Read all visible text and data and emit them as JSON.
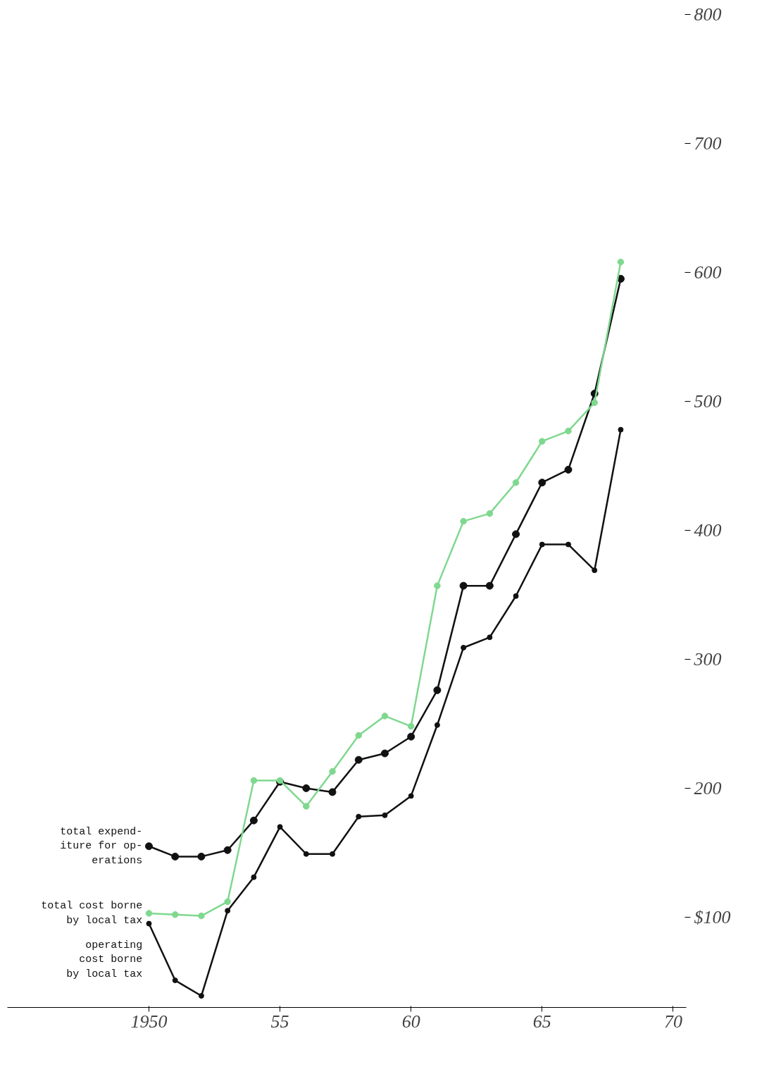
{
  "chart_data": {
    "type": "line",
    "x": [
      1950,
      1951,
      1952,
      1953,
      1954,
      1955,
      1956,
      1957,
      1958,
      1959,
      1960,
      1961,
      1962,
      1963,
      1964,
      1965,
      1966,
      1967,
      1968
    ],
    "series": [
      {
        "name": "total expend-\niture for op-\nerations",
        "color": "#111111",
        "values": [
          155,
          147,
          147,
          152,
          175,
          205,
          200,
          197,
          222,
          227,
          240,
          276,
          357,
          357,
          397,
          437,
          447,
          506,
          595
        ]
      },
      {
        "name": "total cost borne\nby local tax",
        "color": "#7fd88f",
        "values": [
          103,
          102,
          101,
          112,
          206,
          206,
          186,
          213,
          241,
          256,
          248,
          357,
          407,
          413,
          437,
          469,
          477,
          499,
          608
        ]
      },
      {
        "name": "operating\ncost borne\nby local tax",
        "color": "#111111",
        "values": [
          95,
          51,
          39,
          105,
          131,
          170,
          149,
          149,
          178,
          179,
          194,
          249,
          309,
          317,
          349,
          389,
          389,
          369,
          478
        ]
      }
    ],
    "xlim": [
      1944.6,
      1970.5
    ],
    "ylim": [
      30,
      800
    ],
    "xticks": [
      {
        "value": 1950,
        "label": "1950"
      },
      {
        "value": 1955,
        "label": "55"
      },
      {
        "value": 1960,
        "label": "60"
      },
      {
        "value": 1965,
        "label": "65"
      },
      {
        "value": 1970,
        "label": "70"
      }
    ],
    "yticks": [
      {
        "value": 100,
        "label": "$100"
      },
      200,
      300,
      400,
      500,
      600,
      700,
      800
    ],
    "marker": "circle",
    "line_style": "solid",
    "grid": false,
    "legend": false
  }
}
